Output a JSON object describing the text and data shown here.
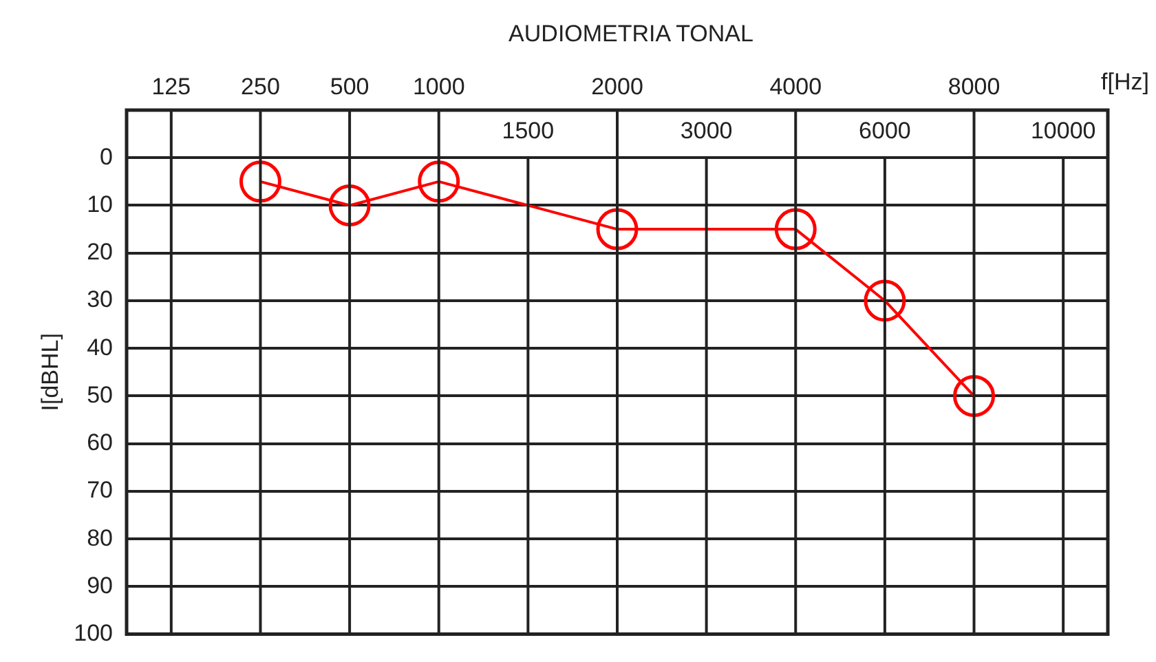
{
  "chart_data": {
    "type": "line",
    "title": "AUDIOMETRIA TONAL",
    "xlabel": "f[Hz]",
    "ylabel": "I[dBHL]",
    "categories": [
      "125",
      "250",
      "500",
      "1000",
      "1500",
      "2000",
      "3000",
      "4000",
      "6000",
      "8000",
      "10000"
    ],
    "series": [
      {
        "color": "#ff0000",
        "values": [
          null,
          5,
          10,
          5,
          null,
          15,
          null,
          15,
          30,
          50,
          null
        ]
      }
    ],
    "ylim": [
      100,
      -10
    ],
    "yticks": [
      0,
      10,
      20,
      30,
      40,
      50,
      60,
      70,
      80,
      90,
      100
    ],
    "grid": true,
    "marker": "circle",
    "line_style": "solid"
  }
}
